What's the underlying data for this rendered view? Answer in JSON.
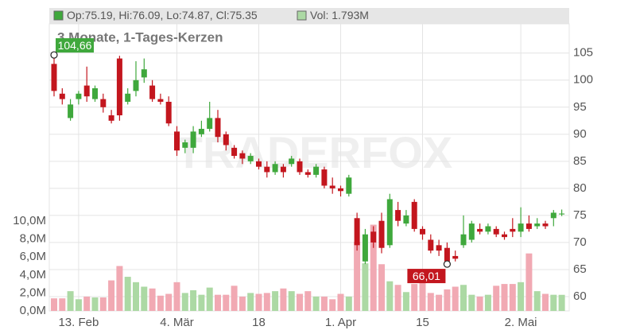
{
  "chart_data": {
    "type": "candlestick",
    "title": "3 Monate, 1-Tages-Kerzen",
    "header": {
      "ohlc": "Op:75.19, Hi:76.09, Lo:74.87, Cl:75.35",
      "volume": "Vol: 1.793M"
    },
    "watermark": "TRADERFOX",
    "categories": [
      null,
      null,
      null,
      "13. Feb",
      null,
      null,
      null,
      null,
      null,
      null,
      null,
      null,
      null,
      null,
      null,
      "4. Mär",
      null,
      null,
      null,
      null,
      null,
      null,
      null,
      null,
      null,
      "18",
      null,
      null,
      null,
      null,
      null,
      null,
      null,
      null,
      null,
      "1. Apr",
      null,
      null,
      null,
      null,
      null,
      null,
      null,
      null,
      null,
      "15",
      null,
      null,
      null,
      null,
      null,
      null,
      null,
      null,
      null,
      null,
      null,
      "2. Mai",
      null,
      null,
      null,
      null,
      null
    ],
    "open": [
      103,
      97.5,
      93,
      96.5,
      99,
      96.5,
      96.5,
      93.5,
      104,
      96,
      98,
      100.5,
      99,
      96.5,
      96,
      90.5,
      87.5,
      87.5,
      90,
      91,
      93,
      90,
      87.5,
      86.5,
      85,
      85,
      84,
      83,
      84,
      84.5,
      85,
      83,
      82.5,
      83.5,
      80.5,
      80,
      79,
      74.5,
      66.5,
      72,
      74,
      69.5,
      76,
      73.5,
      77.5,
      72.5,
      70.5,
      69.5,
      69,
      67.5,
      69.5,
      70.5,
      72.5,
      72,
      72.5,
      71.5,
      72.5,
      72,
      73.5,
      73,
      73.5,
      74.5,
      75.19
    ],
    "high": [
      104.66,
      98.5,
      96.5,
      98,
      102.5,
      99,
      97.5,
      94.5,
      104.5,
      98.5,
      103.5,
      104,
      100,
      97.5,
      97,
      91.5,
      89,
      91.5,
      92.5,
      96,
      94.5,
      90.5,
      88,
      87,
      86.5,
      85.5,
      85,
      85,
      84.5,
      86,
      85.5,
      83.5,
      84.5,
      84,
      82,
      80.5,
      82.5,
      75.5,
      72.5,
      73,
      75.5,
      79,
      77.5,
      76,
      78,
      73,
      71.5,
      70.5,
      70,
      68.5,
      75,
      74,
      73.5,
      73.5,
      73,
      72,
      74.5,
      76.5,
      75,
      74.5,
      74,
      76,
      76.09
    ],
    "low": [
      97,
      95.5,
      92.5,
      95.5,
      96,
      96,
      94,
      92,
      92.5,
      95.5,
      97,
      99.5,
      96,
      95.5,
      91.5,
      86,
      86.5,
      86.5,
      89.5,
      90.5,
      88.5,
      87,
      85.5,
      84.5,
      84.5,
      83.5,
      82,
      82.5,
      82,
      84,
      82.5,
      82,
      82,
      80,
      79,
      78.5,
      78.5,
      68.5,
      66.01,
      69,
      68,
      69,
      73,
      73,
      72,
      70.5,
      68,
      67.5,
      66,
      66.5,
      69,
      70,
      71.5,
      71.5,
      71,
      70.5,
      71,
      71,
      72,
      72.5,
      72.5,
      73,
      74.87
    ],
    "close": [
      98,
      96.5,
      95.5,
      97.5,
      97,
      98.5,
      95,
      92.5,
      93.5,
      97.5,
      100,
      102,
      96.5,
      96,
      92,
      87,
      88.5,
      90.5,
      91,
      93,
      89.5,
      88,
      86,
      85.5,
      86,
      84,
      83,
      84.5,
      83,
      85.5,
      83,
      82.5,
      84,
      80.5,
      80,
      79.5,
      82,
      69.5,
      71.5,
      70,
      69,
      78,
      74,
      75,
      72.5,
      71.5,
      68.5,
      68.5,
      66.5,
      67,
      71.5,
      73.5,
      72,
      73,
      71.5,
      71,
      72,
      73.5,
      72.5,
      73.5,
      73,
      75.5,
      75.35
    ],
    "volume": [
      1.4,
      1.4,
      2.2,
      1.3,
      1.6,
      1.5,
      1.5,
      3.4,
      5.0,
      3.8,
      3.2,
      2.7,
      2.5,
      1.7,
      1.9,
      3.2,
      2.0,
      2.3,
      1.8,
      2.6,
      1.8,
      1.8,
      2.8,
      1.6,
      2.0,
      1.9,
      2.0,
      2.2,
      2.5,
      2.2,
      1.9,
      2.2,
      1.6,
      1.6,
      1.3,
      1.9,
      1.6,
      7.7,
      5.3,
      9.6,
      5.2,
      3.3,
      2.9,
      2.1,
      3.0,
      3.3,
      2.0,
      1.8,
      2.4,
      2.7,
      2.9,
      1.8,
      1.6,
      1.8,
      2.8,
      3.0,
      3.0,
      3.2,
      6.4,
      2.2,
      1.9,
      1.8,
      1.793
    ],
    "up_color": "#3fa83c",
    "down_color": "#c3161e",
    "volume_up_color": "#acd9a4",
    "volume_down_color": "#f1a9b3",
    "annotations": [
      {
        "label": "104,66",
        "value": 104.66
      },
      {
        "label": "66,01",
        "value": 66.01
      }
    ],
    "ylim": [
      57.35,
      110.4
    ],
    "yticks": [
      60,
      65,
      70,
      75,
      80,
      85,
      90,
      95,
      100,
      105
    ],
    "y2lim": [
      0,
      31.95
    ],
    "y2ticks": [
      {
        "value": 0,
        "label": "0,0M"
      },
      {
        "value": 2,
        "label": "2,0M"
      },
      {
        "value": 4,
        "label": "4,0M"
      },
      {
        "value": 6,
        "label": "6,0M"
      },
      {
        "value": 8,
        "label": "8,0M"
      },
      {
        "value": 10,
        "label": "10,0M"
      }
    ],
    "grid": true
  }
}
